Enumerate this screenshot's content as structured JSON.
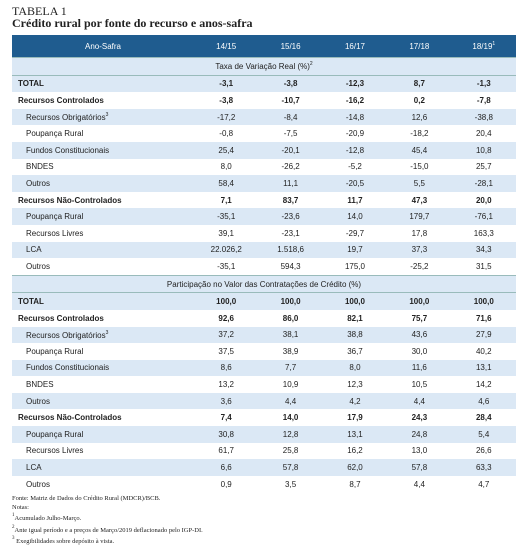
{
  "header": {
    "label": "TABELA 1",
    "title": "Crédito rural por fonte do recurso e anos-safra"
  },
  "table": {
    "corner": "Ano-Safra",
    "years": [
      {
        "text": "14/15"
      },
      {
        "text": "15/16"
      },
      {
        "text": "16/17"
      },
      {
        "text": "17/18"
      },
      {
        "text": "18/19",
        "note": "1"
      }
    ],
    "sections": [
      {
        "title": "Taxa de Variação Real (%)",
        "note": "2",
        "total": {
          "label": "TOTAL",
          "values": [
            "-3,1",
            "-3,8",
            "-12,3",
            "8,7",
            "-1,3"
          ]
        },
        "groups": [
          {
            "label": "Recursos Controlados",
            "values": [
              "-3,8",
              "-10,7",
              "-16,2",
              "0,2",
              "-7,8"
            ],
            "children": [
              {
                "label": "Recursos Obrigatórios",
                "note": "3",
                "values": [
                  "-17,2",
                  "-8,4",
                  "-14,8",
                  "12,6",
                  "-38,8"
                ]
              },
              {
                "label": "Poupança Rural",
                "values": [
                  "-0,8",
                  "-7,5",
                  "-20,9",
                  "-18,2",
                  "20,4"
                ]
              },
              {
                "label": "Fundos Constitucionais",
                "values": [
                  "25,4",
                  "-20,1",
                  "-12,8",
                  "45,4",
                  "10,8"
                ]
              },
              {
                "label": "BNDES",
                "values": [
                  "8,0",
                  "-26,2",
                  "-5,2",
                  "-15,0",
                  "25,7"
                ]
              },
              {
                "label": "Outros",
                "values": [
                  "58,4",
                  "11,1",
                  "-20,5",
                  "5,5",
                  "-28,1"
                ]
              }
            ]
          },
          {
            "label": "Recursos Não-Controlados",
            "values": [
              "7,1",
              "83,7",
              "11,7",
              "47,3",
              "20,0"
            ],
            "children": [
              {
                "label": "Poupança Rural",
                "values": [
                  "-35,1",
                  "-23,6",
                  "14,0",
                  "179,7",
                  "-76,1"
                ]
              },
              {
                "label": "Recursos Livres",
                "values": [
                  "39,1",
                  "-23,1",
                  "-29,7",
                  "17,8",
                  "163,3"
                ]
              },
              {
                "label": "LCA",
                "values": [
                  "22.026,2",
                  "1.518,6",
                  "19,7",
                  "37,3",
                  "34,3"
                ]
              },
              {
                "label": "Outros",
                "values": [
                  "-35,1",
                  "594,3",
                  "175,0",
                  "-25,2",
                  "31,5"
                ]
              }
            ]
          }
        ]
      },
      {
        "title": "Participação no Valor das Contratações de Crédito (%)",
        "total": {
          "label": "TOTAL",
          "values": [
            "100,0",
            "100,0",
            "100,0",
            "100,0",
            "100,0"
          ]
        },
        "groups": [
          {
            "label": "Recursos Controlados",
            "values": [
              "92,6",
              "86,0",
              "82,1",
              "75,7",
              "71,6"
            ],
            "children": [
              {
                "label": "Recursos Obrigatórios",
                "note": "3",
                "values": [
                  "37,2",
                  "38,1",
                  "38,8",
                  "43,6",
                  "27,9"
                ]
              },
              {
                "label": "Poupança Rural",
                "values": [
                  "37,5",
                  "38,9",
                  "36,7",
                  "30,0",
                  "40,2"
                ]
              },
              {
                "label": "Fundos Constitucionais",
                "values": [
                  "8,6",
                  "7,7",
                  "8,0",
                  "11,6",
                  "13,1"
                ]
              },
              {
                "label": "BNDES",
                "values": [
                  "13,2",
                  "10,9",
                  "12,3",
                  "10,5",
                  "14,2"
                ]
              },
              {
                "label": "Outros",
                "values": [
                  "3,6",
                  "4,4",
                  "4,2",
                  "4,4",
                  "4,6"
                ]
              }
            ]
          },
          {
            "label": "Recursos Não-Controlados",
            "values": [
              "7,4",
              "14,0",
              "17,9",
              "24,3",
              "28,4"
            ],
            "children": [
              {
                "label": "Poupança Rural",
                "values": [
                  "30,8",
                  "12,8",
                  "13,1",
                  "24,8",
                  "5,4"
                ]
              },
              {
                "label": "Recursos Livres",
                "values": [
                  "61,7",
                  "25,8",
                  "16,2",
                  "13,0",
                  "26,6"
                ]
              },
              {
                "label": "LCA",
                "values": [
                  "6,6",
                  "57,8",
                  "62,0",
                  "57,8",
                  "63,3"
                ]
              },
              {
                "label": "Outros",
                "values": [
                  "0,9",
                  "3,5",
                  "8,7",
                  "4,4",
                  "4,7"
                ]
              }
            ]
          }
        ]
      }
    ]
  },
  "footer": {
    "source": "Fonte: Matriz de Dados do Crédito Rural (MDCR)/BCB.",
    "notes_label": "Notas:",
    "notes": [
      {
        "mark": "1",
        "text": "Acumulado Julho-Março."
      },
      {
        "mark": "2",
        "text": "Ante igual período e a preços de Março/2019 deflacionado pelo IGP-DI."
      },
      {
        "mark": "3",
        "text": " Exegibilidades sobre depósito à vista."
      }
    ]
  }
}
